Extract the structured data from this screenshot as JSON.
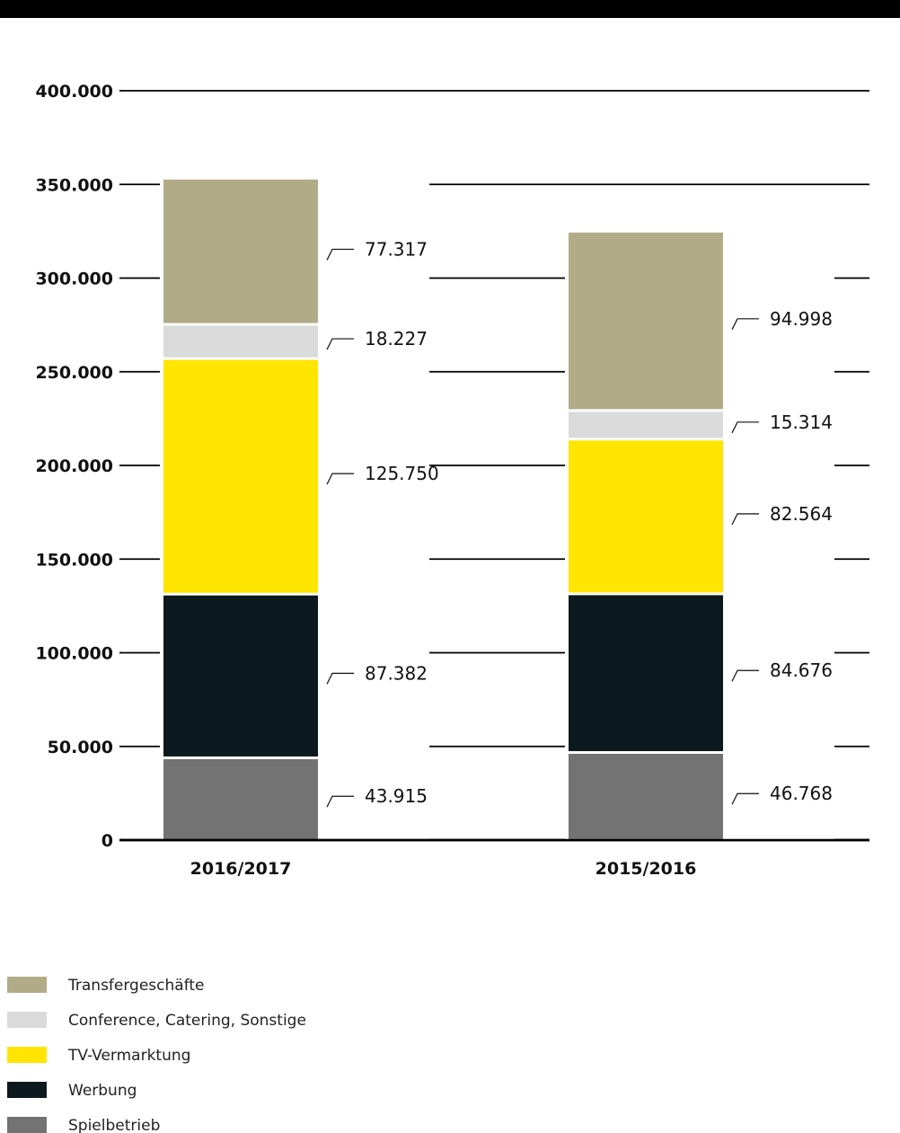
{
  "chart_data": {
    "type": "bar",
    "stacked": true,
    "categories": [
      "2016/2017",
      "2015/2016"
    ],
    "series": [
      {
        "name": "Spielbetrieb",
        "color": "#737373",
        "values": [
          43915,
          46768
        ],
        "labels": [
          "43.915",
          "46.768"
        ]
      },
      {
        "name": "Werbung",
        "color": "#0c191e",
        "values": [
          87382,
          84676
        ],
        "labels": [
          "87.382",
          "84.676"
        ]
      },
      {
        "name": "TV-Vermarktung",
        "color": "#ffe500",
        "values": [
          125750,
          82564
        ],
        "labels": [
          "125.750",
          "82.564"
        ]
      },
      {
        "name": "Conference, Catering, Sonstige",
        "color": "#dadada",
        "values": [
          18227,
          15314
        ],
        "labels": [
          "18.227",
          "15.314"
        ]
      },
      {
        "name": "Transfergeschäfte",
        "color": "#b2ab87",
        "values": [
          77317,
          94998
        ],
        "labels": [
          "77.317",
          "94.998"
        ]
      }
    ],
    "ylim": [
      0,
      400000
    ],
    "yticks": [
      0,
      50000,
      100000,
      150000,
      200000,
      250000,
      300000,
      350000,
      400000
    ],
    "ytick_labels": [
      "0",
      "50.000",
      "100.000",
      "150.000",
      "200.000",
      "250.000",
      "300.000",
      "350.000",
      "400.000"
    ],
    "grid": true,
    "legend_position": "bottom-left",
    "legend_order": [
      "Transfergeschäfte",
      "Conference, Catering, Sonstige",
      "TV-Vermarktung",
      "Werbung",
      "Spielbetrieb"
    ],
    "xlabel": "",
    "ylabel": "",
    "title": ""
  },
  "colors": {
    "top_bar": "#000000",
    "gridline": "#000000",
    "text": "#111111",
    "separator": "#ffffff"
  }
}
